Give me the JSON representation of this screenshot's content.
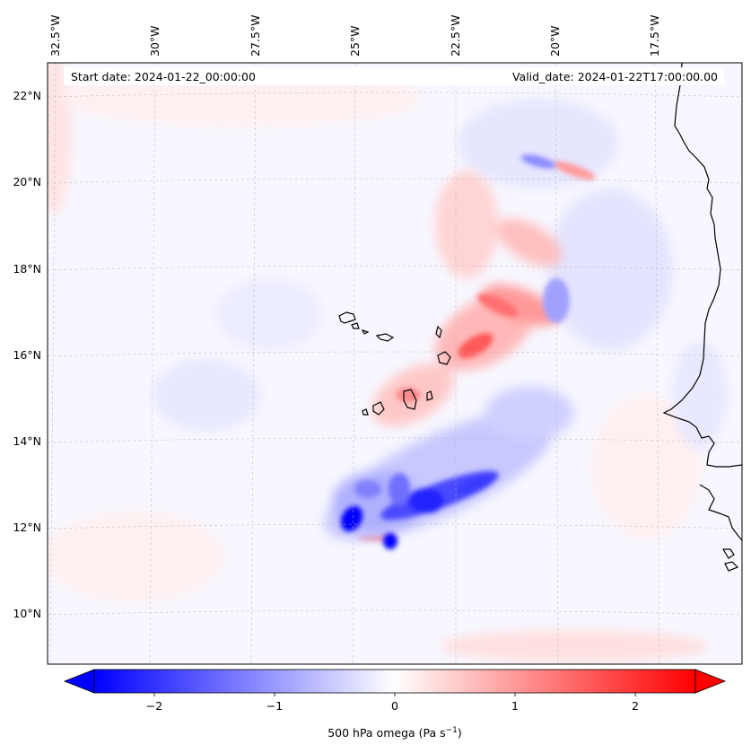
{
  "map": {
    "start_label": "Start date: 2024-01-22_00:00:00",
    "valid_label": "Valid_date: 2024-01-22T17:00:00.00",
    "lon_labels": [
      "32.5°W",
      "30°W",
      "27.5°W",
      "25°W",
      "22.5°W",
      "20°W",
      "17.5°W"
    ],
    "lat_labels": [
      "22°N",
      "20°N",
      "18°N",
      "16°N",
      "14°N",
      "12°N",
      "10°N"
    ],
    "gridlines": true,
    "colormap": "bwr",
    "colors": {
      "negative": "#0000ff",
      "zero": "#ffffff",
      "positive": "#ff0000",
      "coastline": "#000000"
    }
  },
  "colorbar": {
    "ticks": [
      "−2",
      "−1",
      "0",
      "1",
      "2"
    ],
    "tick_values": [
      -2,
      -1,
      0,
      1,
      2
    ],
    "range": [
      -2.5,
      2.5
    ],
    "label_text": "500 hPa omega (Pa s",
    "label_exp": "−1",
    "label_close": ")",
    "extend": "both"
  }
}
